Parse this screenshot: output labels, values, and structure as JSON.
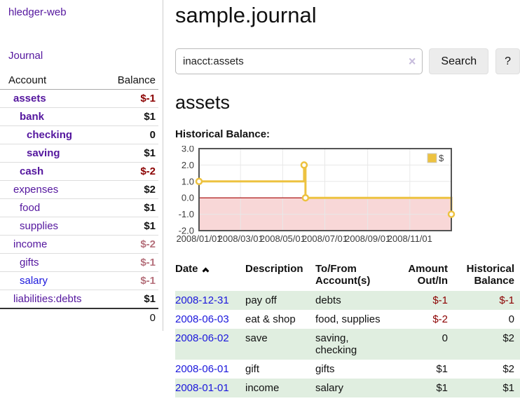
{
  "app": {
    "brand": "hledger-web"
  },
  "ui_colors": {
    "link_purple": "#54169e",
    "link_blue": "#1b17dc",
    "negative_red": "#8b0000",
    "muted_negative": "#b5707b",
    "shaded_row_green": "#e0eee0",
    "button_gray": "#ececec"
  },
  "sidebar": {
    "journal_label": "Journal",
    "accounts_table": {
      "headers": {
        "account": "Account",
        "balance": "Balance"
      },
      "rows": [
        {
          "name": "assets",
          "level": 1,
          "bold": true,
          "balance": "$-1",
          "balance_color": "negative"
        },
        {
          "name": "bank",
          "level": 2,
          "bold": true,
          "balance": "$1",
          "balance_color": ""
        },
        {
          "name": "checking",
          "level": 3,
          "bold": true,
          "balance": "0",
          "balance_color": ""
        },
        {
          "name": "saving",
          "level": 3,
          "bold": true,
          "balance": "$1",
          "balance_color": ""
        },
        {
          "name": "cash",
          "level": 2,
          "bold": true,
          "balance": "$-2",
          "balance_color": "negative"
        },
        {
          "name": "expenses",
          "level": 1,
          "bold": false,
          "balance": "$2",
          "balance_color": ""
        },
        {
          "name": "food",
          "level": 2,
          "bold": false,
          "balance": "$1",
          "balance_color": ""
        },
        {
          "name": "supplies",
          "level": 2,
          "bold": false,
          "balance": "$1",
          "balance_color": ""
        },
        {
          "name": "income",
          "level": 1,
          "bold": false,
          "balance": "$-2",
          "balance_color": "muted"
        },
        {
          "name": "gifts",
          "level": 2,
          "bold": false,
          "balance": "$-1",
          "balance_color": "muted"
        },
        {
          "name": "salary",
          "level": 2,
          "bold": false,
          "balance": "$-1",
          "balance_color": "muted",
          "blue_link": true
        },
        {
          "name": "liabilities:debts",
          "level": 1,
          "bold": false,
          "balance": "$1",
          "balance_color": ""
        }
      ],
      "total": "0"
    }
  },
  "main": {
    "title": "sample.journal",
    "search": {
      "value": "inacct:assets",
      "clear_icon": "×",
      "search_button": "Search",
      "help_button": "?"
    },
    "account_heading": "assets",
    "chart_label": "Historical Balance:"
  },
  "chart_data": {
    "type": "line",
    "title": "Historical Balance:",
    "series": [
      {
        "name": "$",
        "color": "#edc240",
        "steps": true,
        "points": [
          [
            "2008-01-01",
            1
          ],
          [
            "2008-06-01",
            2
          ],
          [
            "2008-06-03",
            0
          ],
          [
            "2008-12-31",
            -1
          ]
        ]
      }
    ],
    "x_range": [
      "2008-01-01",
      "2008-12-31"
    ],
    "x_ticks": [
      {
        "date": "2008-01-01",
        "label": "2008/01/01"
      },
      {
        "date": "2008-03-01",
        "label": "2008/03/01"
      },
      {
        "date": "2008-05-01",
        "label": "2008/05/01"
      },
      {
        "date": "2008-07-01",
        "label": "2008/07/01"
      },
      {
        "date": "2008-09-01",
        "label": "2008/09/01"
      },
      {
        "date": "2008-11-01",
        "label": "2008/11/01"
      }
    ],
    "y_ticks": [
      3.0,
      2.0,
      1.0,
      0.0,
      -1.0,
      -2.0
    ],
    "ylim": [
      -2,
      3
    ],
    "grid": true,
    "legend": {
      "label": "$",
      "position": "top-right"
    },
    "zero_line_color": "#a40000",
    "negative_region_color": "#f8d7d7",
    "border_color": "#545454",
    "grid_color": "#e8e8e8",
    "tick_label_color": "#3c3c3c"
  },
  "register": {
    "headers": {
      "date": "Date",
      "description": "Description",
      "accounts": "To/From Account(s)",
      "amount": "Amount Out/In",
      "balance": "Historical Balance"
    },
    "rows": [
      {
        "date": "2008-12-31",
        "description": "pay off",
        "accounts": "debts",
        "amount": "$-1",
        "amount_neg": true,
        "balance": "$-1",
        "balance_neg": true,
        "shaded": true
      },
      {
        "date": "2008-06-03",
        "description": "eat & shop",
        "accounts": "food, supplies",
        "amount": "$-2",
        "amount_neg": true,
        "balance": "0",
        "balance_neg": false,
        "shaded": false
      },
      {
        "date": "2008-06-02",
        "description": "save",
        "accounts": "saving, checking",
        "amount": "0",
        "amount_neg": false,
        "balance": "$2",
        "balance_neg": false,
        "shaded": true
      },
      {
        "date": "2008-06-01",
        "description": "gift",
        "accounts": "gifts",
        "amount": "$1",
        "amount_neg": false,
        "balance": "$2",
        "balance_neg": false,
        "shaded": false
      },
      {
        "date": "2008-01-01",
        "description": "income",
        "accounts": "salary",
        "amount": "$1",
        "amount_neg": false,
        "balance": "$1",
        "balance_neg": false,
        "shaded": true
      }
    ]
  }
}
